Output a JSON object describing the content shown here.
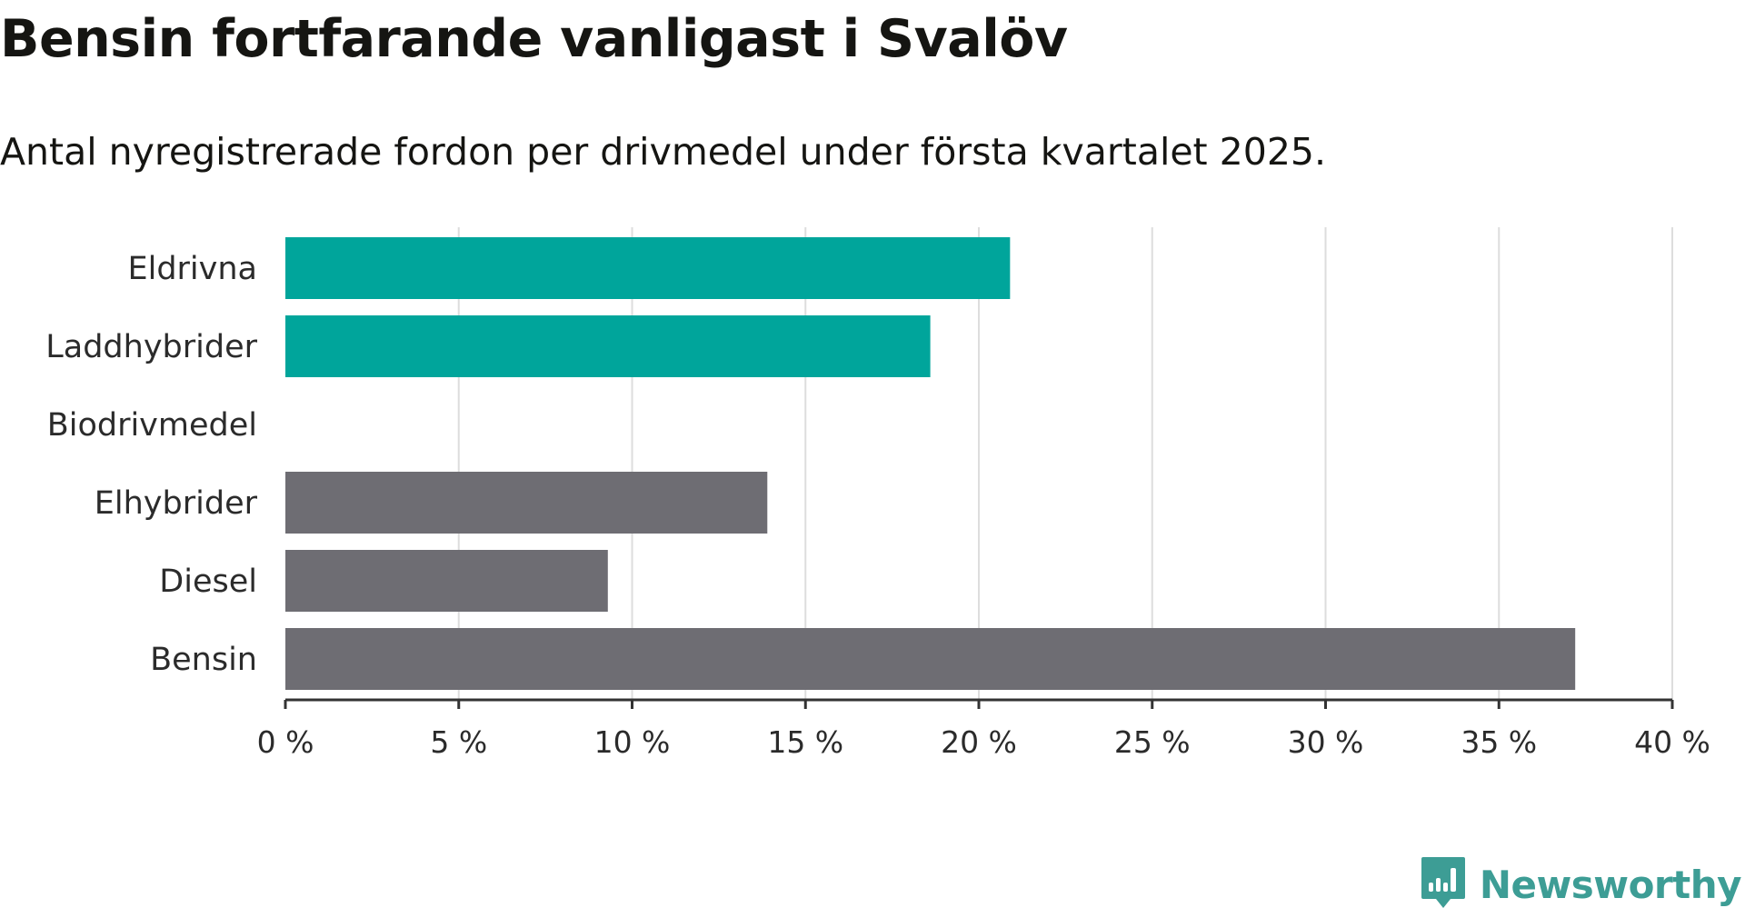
{
  "header": {
    "title": "Bensin fortfarande vanligast i Svalöv",
    "subtitle": "Antal nyregistrerade fordon per drivmedel under första kvartalet 2025."
  },
  "brand": {
    "name": "Newsworthy",
    "icon": "newsworthy-logo-icon",
    "color": "#3d9d95"
  },
  "colors": {
    "highlight": "#00a59b",
    "default": "#6e6d73"
  },
  "chart_data": {
    "type": "bar",
    "orientation": "horizontal",
    "categories": [
      "Eldrivna",
      "Laddhybrider",
      "Biodrivmedel",
      "Elhybrider",
      "Diesel",
      "Bensin"
    ],
    "values": [
      20.9,
      18.6,
      0,
      13.9,
      9.3,
      37.2
    ],
    "highlighted": [
      true,
      true,
      false,
      false,
      false,
      false
    ],
    "xlim": [
      0,
      40
    ],
    "xticks": [
      0,
      5,
      10,
      15,
      20,
      25,
      30,
      35,
      40
    ],
    "xtick_labels": [
      "0 %",
      "5 %",
      "10 %",
      "15 %",
      "20 %",
      "25 %",
      "30 %",
      "35 %",
      "40 %"
    ],
    "xlabel": "",
    "ylabel": "",
    "grid": true,
    "legend": "none"
  }
}
